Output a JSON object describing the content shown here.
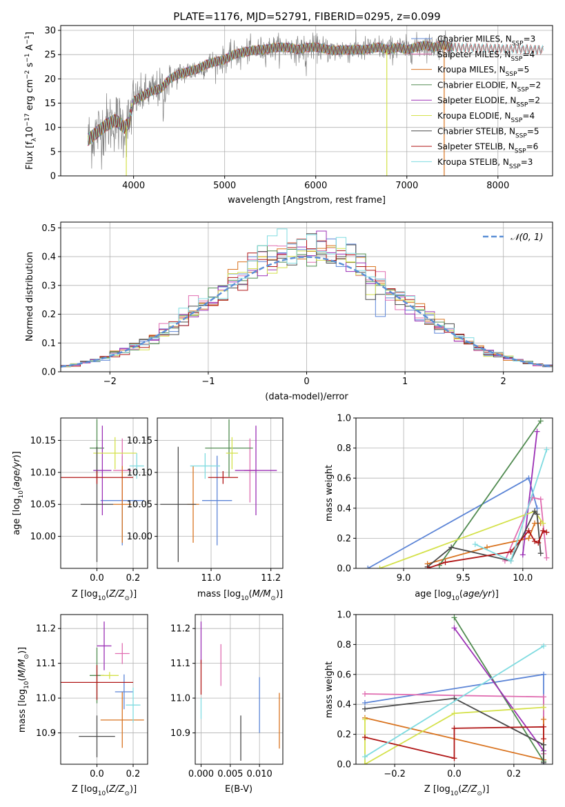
{
  "title": "PLATE=1176, MJD=52791, FIBERID=0295, z=0.099",
  "colors": {
    "chabrier_miles": "#5b84d6",
    "salpeter_miles": "#e06cb0",
    "kroupa_miles": "#d9731f",
    "chabrier_elodie": "#4f8a4f",
    "salpeter_elodie": "#9b2fb5",
    "kroupa_elodie": "#d4e14a",
    "chabrier_stelib": "#4a4a4a",
    "salpeter_stelib": "#b01515",
    "kroupa_stelib": "#7fdbe0",
    "data_grey": "#808080",
    "normal_curve": "#5b8fd6",
    "grid": "#b0b0b0"
  },
  "chart_data": [
    {
      "id": "spectrum",
      "type": "line",
      "xlabel": "wavelength [Angstrom, rest frame]",
      "ylabel": "Flux [fλ10⁻¹⁷ erg cm⁻² s⁻¹ A⁻¹]",
      "xlim": [
        3200,
        8600
      ],
      "ylim": [
        0,
        31
      ],
      "xticks": [
        4000,
        5000,
        6000,
        7000,
        8000
      ],
      "yticks": [
        0,
        5,
        10,
        15,
        20,
        25,
        30
      ],
      "legend_loc": "right",
      "legend": [
        {
          "label": "Chabrier MILES, N",
          "sub": "SSP",
          "val": "=3",
          "color": "chabrier_miles"
        },
        {
          "label": "Salpeter MILES, N",
          "sub": "SSP",
          "val": "=4",
          "color": "salpeter_miles"
        },
        {
          "label": "Kroupa MILES, N",
          "sub": "SSP",
          "val": "=5",
          "color": "kroupa_miles"
        },
        {
          "label": "Chabrier ELODIE, N",
          "sub": "SSP",
          "val": "=2",
          "color": "chabrier_elodie"
        },
        {
          "label": "Salpeter ELODIE, N",
          "sub": "SSP",
          "val": "=2",
          "color": "salpeter_elodie"
        },
        {
          "label": "Kroupa ELODIE, N",
          "sub": "SSP",
          "val": "=4",
          "color": "kroupa_elodie"
        },
        {
          "label": "Chabrier STELIB, N",
          "sub": "SSP",
          "val": "=5",
          "color": "chabrier_stelib"
        },
        {
          "label": "Salpeter STELIB, N",
          "sub": "SSP",
          "val": "=6",
          "color": "salpeter_stelib"
        },
        {
          "label": "Kroupa STELIB, N",
          "sub": "SSP",
          "val": "=3",
          "color": "kroupa_stelib"
        }
      ],
      "continuum_x": [
        3500,
        3600,
        3700,
        3800,
        3900,
        3950,
        4000,
        4100,
        4200,
        4300,
        4400,
        4500,
        4600,
        4700,
        4800,
        4900,
        5000,
        5100,
        5200,
        5300,
        5400,
        5500,
        5600,
        5700,
        5800,
        5900,
        6000,
        6100,
        6200,
        6300,
        6400,
        6500,
        6600,
        6700,
        6800,
        6900,
        7000,
        7100,
        7200,
        7300,
        7400,
        7500
      ],
      "continuum_y": [
        7.5,
        9,
        10.5,
        11.5,
        10,
        11,
        15.5,
        16.5,
        17.5,
        18,
        20,
        21,
        21.5,
        22,
        23,
        23.5,
        24,
        25,
        25.5,
        25.8,
        26,
        26.3,
        26.5,
        26.5,
        26,
        26.5,
        26.5,
        26.2,
        25.8,
        26,
        26,
        26,
        26.2,
        26.5,
        26,
        26.5,
        26,
        26.5,
        27,
        26.5,
        27,
        26.5
      ],
      "model_end_x": 8500,
      "model_end_y": 26,
      "drop_lines_x": [
        3920,
        6780,
        7410
      ]
    },
    {
      "id": "residual_hist",
      "type": "line",
      "xlabel": "(data-model)/error",
      "ylabel": "Normed distribution",
      "xlim": [
        -2.5,
        2.5
      ],
      "ylim": [
        0,
        0.52
      ],
      "xticks": [
        -2,
        -1,
        0,
        1,
        2
      ],
      "yticks": [
        0.0,
        0.1,
        0.2,
        0.3,
        0.4,
        0.5
      ],
      "legend_loc": "top-right",
      "legend_label": "𝒩(0, 1)",
      "bin_width": 0.1
    },
    {
      "id": "age_vs_Z",
      "type": "scatter",
      "xlabel": "Z [log₁₀(Z/Z⊙)]",
      "ylabel": "age  [log₁₀(age/yr)]",
      "xlim": [
        -0.2,
        0.28
      ],
      "ylim": [
        9.95,
        10.185
      ],
      "xticks": [
        0.0,
        0.2
      ],
      "yticks": [
        10.0,
        10.05,
        10.1,
        10.15
      ],
      "points": [
        {
          "x": 0.14,
          "y": 10.056,
          "xerr": 0.12,
          "yerr": 0.07,
          "color": "chabrier_miles"
        },
        {
          "x": 0.14,
          "y": 10.103,
          "xerr": 0.05,
          "yerr": 0.05,
          "color": "salpeter_miles"
        },
        {
          "x": 0.14,
          "y": 10.05,
          "xerr": 0.05,
          "yerr": 0.06,
          "color": "kroupa_miles"
        },
        {
          "x": 0.0,
          "y": 10.138,
          "xerr": 0.04,
          "yerr": 0.045,
          "color": "chabrier_elodie"
        },
        {
          "x": 0.03,
          "y": 10.103,
          "xerr": 0.05,
          "yerr": 0.07,
          "color": "salpeter_elodie"
        },
        {
          "x": 0.1,
          "y": 10.13,
          "xerr": 0.12,
          "yerr": 0.025,
          "color": "kroupa_elodie"
        },
        {
          "x": 0.0,
          "y": 10.05,
          "xerr": 0.09,
          "yerr": 0.09,
          "color": "chabrier_stelib"
        },
        {
          "x": 0.0,
          "y": 10.092,
          "xerr": 0.2,
          "yerr": 0.01,
          "color": "salpeter_stelib"
        },
        {
          "x": 0.22,
          "y": 10.11,
          "xerr": 0.04,
          "yerr": 0.02,
          "color": "kroupa_stelib"
        }
      ]
    },
    {
      "id": "age_vs_mass",
      "type": "scatter",
      "xlabel": "mass [log₁₀(M/M⊙)]",
      "ylabel": "",
      "xlim": [
        10.82,
        11.24
      ],
      "ylim": [
        9.95,
        10.185
      ],
      "xticks": [
        11.0,
        11.2
      ],
      "yticks": [
        10.0,
        10.05,
        10.1,
        10.15
      ],
      "points": [
        {
          "x": 11.02,
          "y": 10.056,
          "xerr": 0.05,
          "yerr": 0.07,
          "color": "chabrier_miles"
        },
        {
          "x": 11.13,
          "y": 10.103,
          "xerr": 0.02,
          "yerr": 0.05,
          "color": "salpeter_miles"
        },
        {
          "x": 10.94,
          "y": 10.05,
          "xerr": 0.02,
          "yerr": 0.06,
          "color": "kroupa_miles"
        },
        {
          "x": 11.06,
          "y": 10.138,
          "xerr": 0.08,
          "yerr": 0.045,
          "color": "chabrier_elodie"
        },
        {
          "x": 11.15,
          "y": 10.103,
          "xerr": 0.07,
          "yerr": 0.07,
          "color": "salpeter_elodie"
        },
        {
          "x": 11.07,
          "y": 10.13,
          "xerr": 0.02,
          "yerr": 0.025,
          "color": "kroupa_elodie"
        },
        {
          "x": 10.89,
          "y": 10.05,
          "xerr": 0.06,
          "yerr": 0.09,
          "color": "chabrier_stelib"
        },
        {
          "x": 11.04,
          "y": 10.092,
          "xerr": 0.05,
          "yerr": 0.01,
          "color": "salpeter_stelib"
        },
        {
          "x": 10.98,
          "y": 10.11,
          "xerr": 0.05,
          "yerr": 0.02,
          "color": "kroupa_stelib"
        }
      ]
    },
    {
      "id": "weight_vs_age",
      "type": "line",
      "xlabel": "age  [log₁₀(age/yr)]",
      "ylabel": "mass weight",
      "xlim": [
        8.6,
        10.25
      ],
      "ylim": [
        0,
        1.0
      ],
      "xticks": [
        9.0,
        9.5,
        10.0
      ],
      "yticks": [
        0.0,
        0.2,
        0.4,
        0.6,
        0.8,
        1.0
      ],
      "series": [
        {
          "color": "chabrier_miles",
          "x": [
            8.7,
            10.05,
            10.12
          ],
          "y": [
            0.0,
            0.6,
            0.4
          ]
        },
        {
          "color": "salpeter_miles",
          "x": [
            9.85,
            10.08,
            10.15,
            10.2
          ],
          "y": [
            0.05,
            0.47,
            0.46,
            0.07
          ]
        },
        {
          "color": "kroupa_miles",
          "x": [
            9.2,
            9.7,
            10.05,
            10.1,
            10.15
          ],
          "y": [
            0.03,
            0.14,
            0.2,
            0.3,
            0.3
          ]
        },
        {
          "color": "chabrier_elodie",
          "x": [
            9.3,
            10.15
          ],
          "y": [
            0.02,
            0.98
          ]
        },
        {
          "color": "salpeter_elodie",
          "x": [
            10.0,
            10.12
          ],
          "y": [
            0.09,
            0.91
          ]
        },
        {
          "color": "kroupa_elodie",
          "x": [
            8.8,
            10.1,
            10.17
          ],
          "y": [
            0.0,
            0.38,
            0.3
          ]
        },
        {
          "color": "chabrier_stelib",
          "x": [
            9.2,
            9.4,
            9.9,
            10.1,
            10.12,
            10.15
          ],
          "y": [
            0.01,
            0.14,
            0.05,
            0.38,
            0.36,
            0.1
          ]
        },
        {
          "color": "salpeter_stelib",
          "x": [
            9.2,
            9.35,
            9.9,
            10.05,
            10.1,
            10.13,
            10.17,
            10.2
          ],
          "y": [
            0.0,
            0.04,
            0.11,
            0.25,
            0.18,
            0.17,
            0.25,
            0.24
          ]
        },
        {
          "color": "kroupa_stelib",
          "x": [
            9.6,
            9.9,
            10.2
          ],
          "y": [
            0.16,
            0.05,
            0.79
          ]
        }
      ]
    },
    {
      "id": "mass_vs_Z",
      "type": "scatter",
      "xlabel": "Z [log₁₀(Z/Z⊙)]",
      "ylabel": "mass [log₁₀(M/M⊙)]",
      "xlim": [
        -0.2,
        0.28
      ],
      "ylim": [
        10.81,
        11.24
      ],
      "xticks": [
        0.0,
        0.2
      ],
      "yticks": [
        10.9,
        11.0,
        11.1,
        11.2
      ],
      "points": [
        {
          "x": 0.15,
          "y": 11.018,
          "xerr": 0.05,
          "yerr": 0.05,
          "color": "chabrier_miles"
        },
        {
          "x": 0.14,
          "y": 11.128,
          "xerr": 0.04,
          "yerr": 0.03,
          "color": "salpeter_miles"
        },
        {
          "x": 0.14,
          "y": 10.937,
          "xerr": 0.12,
          "yerr": 0.08,
          "color": "kroupa_miles"
        },
        {
          "x": 0.0,
          "y": 11.065,
          "xerr": 0.04,
          "yerr": 0.08,
          "color": "chabrier_elodie"
        },
        {
          "x": 0.04,
          "y": 11.15,
          "xerr": 0.04,
          "yerr": 0.07,
          "color": "salpeter_elodie"
        },
        {
          "x": 0.07,
          "y": 11.065,
          "xerr": 0.05,
          "yerr": 0.01,
          "color": "kroupa_elodie"
        },
        {
          "x": 0.0,
          "y": 10.89,
          "xerr": 0.1,
          "yerr": 0.06,
          "color": "chabrier_stelib"
        },
        {
          "x": 0.0,
          "y": 11.045,
          "xerr": 0.2,
          "yerr": 0.05,
          "color": "salpeter_stelib"
        },
        {
          "x": 0.2,
          "y": 10.98,
          "xerr": 0.04,
          "yerr": 0.05,
          "color": "kroupa_stelib"
        }
      ]
    },
    {
      "id": "mass_vs_ebv",
      "type": "scatter",
      "xlabel": "E(B-V)",
      "ylabel": "",
      "xlim": [
        -0.001,
        0.014
      ],
      "ylim": [
        10.81,
        11.24
      ],
      "xticks": [
        0.0,
        0.005,
        0.01
      ],
      "xticklabels": [
        "0.000",
        "0.005",
        "0.010"
      ],
      "yticks": [
        10.9,
        11.0,
        11.1,
        11.2
      ],
      "points": [
        {
          "x": 0.01,
          "y": 10.98,
          "yerr": 0.08,
          "color": "chabrier_miles"
        },
        {
          "x": 0.0034,
          "y": 11.095,
          "yerr": 0.06,
          "color": "salpeter_miles"
        },
        {
          "x": 0.0134,
          "y": 10.935,
          "yerr": 0.08,
          "color": "kroupa_miles"
        },
        {
          "x": 0.0,
          "y": 11.16,
          "yerr": 0.06,
          "color": "salpeter_elodie"
        },
        {
          "x": 0.0068,
          "y": 10.885,
          "yerr": 0.065,
          "color": "chabrier_stelib"
        },
        {
          "x": 0.0,
          "y": 11.06,
          "yerr": 0.05,
          "color": "salpeter_stelib"
        },
        {
          "x": 0.0,
          "y": 10.97,
          "yerr": 0.03,
          "color": "kroupa_stelib"
        }
      ]
    },
    {
      "id": "weight_vs_Z",
      "type": "line",
      "xlabel": "Z [log₁₀(Z/Z⊙)]",
      "ylabel": "mass weight",
      "xlim": [
        -0.33,
        0.33
      ],
      "ylim": [
        0,
        1.0
      ],
      "xticks": [
        -0.2,
        0.0,
        0.2
      ],
      "yticks": [
        0.0,
        0.2,
        0.4,
        0.6,
        0.8,
        1.0
      ],
      "series": [
        {
          "color": "chabrier_miles",
          "x": [
            -0.3,
            0.3,
            0.3
          ],
          "y": [
            0.41,
            0.6,
            0.0
          ]
        },
        {
          "color": "salpeter_miles",
          "x": [
            -0.3,
            0.3,
            0.3
          ],
          "y": [
            0.47,
            0.45,
            0.07
          ]
        },
        {
          "color": "kroupa_miles",
          "x": [
            -0.3,
            0.3,
            0.3
          ],
          "y": [
            0.31,
            0.03,
            0.3
          ]
        },
        {
          "color": "chabrier_elodie",
          "x": [
            0.0,
            0.3
          ],
          "y": [
            0.98,
            0.02
          ]
        },
        {
          "color": "salpeter_elodie",
          "x": [
            0.0,
            0.3
          ],
          "y": [
            0.91,
            0.09
          ]
        },
        {
          "color": "kroupa_elodie",
          "x": [
            -0.3,
            -0.3,
            0.0,
            0.3
          ],
          "y": [
            0.3,
            0.0,
            0.34,
            0.38
          ]
        },
        {
          "color": "chabrier_stelib",
          "x": [
            -0.3,
            0.0,
            0.3,
            0.3
          ],
          "y": [
            0.37,
            0.44,
            0.13,
            0.01
          ]
        },
        {
          "color": "salpeter_stelib",
          "x": [
            -0.3,
            0.0,
            0.0,
            0.3,
            0.3
          ],
          "y": [
            0.18,
            0.04,
            0.24,
            0.25,
            0.17
          ]
        },
        {
          "color": "kroupa_stelib",
          "x": [
            -0.3,
            0.3
          ],
          "y": [
            0.05,
            0.79
          ]
        }
      ]
    }
  ]
}
